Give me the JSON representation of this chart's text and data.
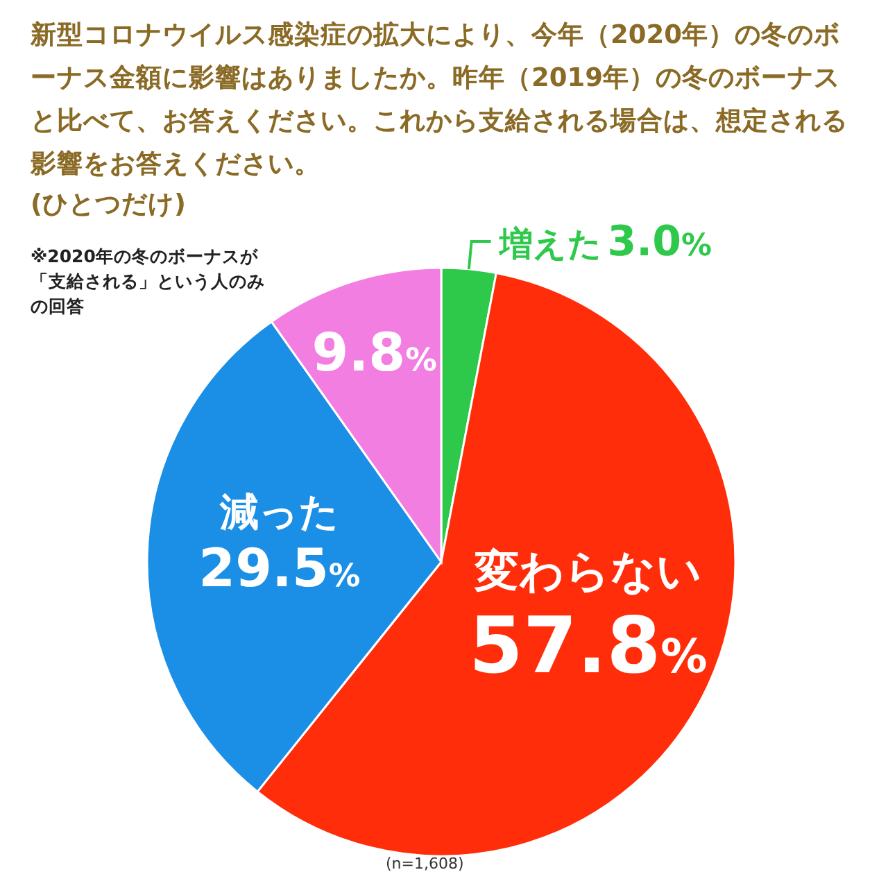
{
  "chart_data": {
    "type": "pie",
    "title": "新型コロナウイルス感染症の拡大により、今年（2020年）の冬のボーナス金額に影響はありましたか。昨年（2019年）の冬のボーナスと比べて、お答えください。これから支給される場合は、想定される影響をお答えください。",
    "subtitle": "(ひとつだけ)",
    "categories": [
      "増えた",
      "変わらない",
      "減った",
      null
    ],
    "values": [
      3.0,
      57.8,
      29.5,
      9.8
    ],
    "value_labels": [
      "3.0%",
      "57.8%",
      "29.5%",
      "9.8%"
    ],
    "colors": [
      "#2ec84a",
      "#ff2d0a",
      "#1b8fe6",
      "#f27ee2"
    ],
    "annotations": [
      "※2020年の冬のボーナスが「支給される」という人のみの回答",
      "(n=1,608)"
    ]
  }
}
